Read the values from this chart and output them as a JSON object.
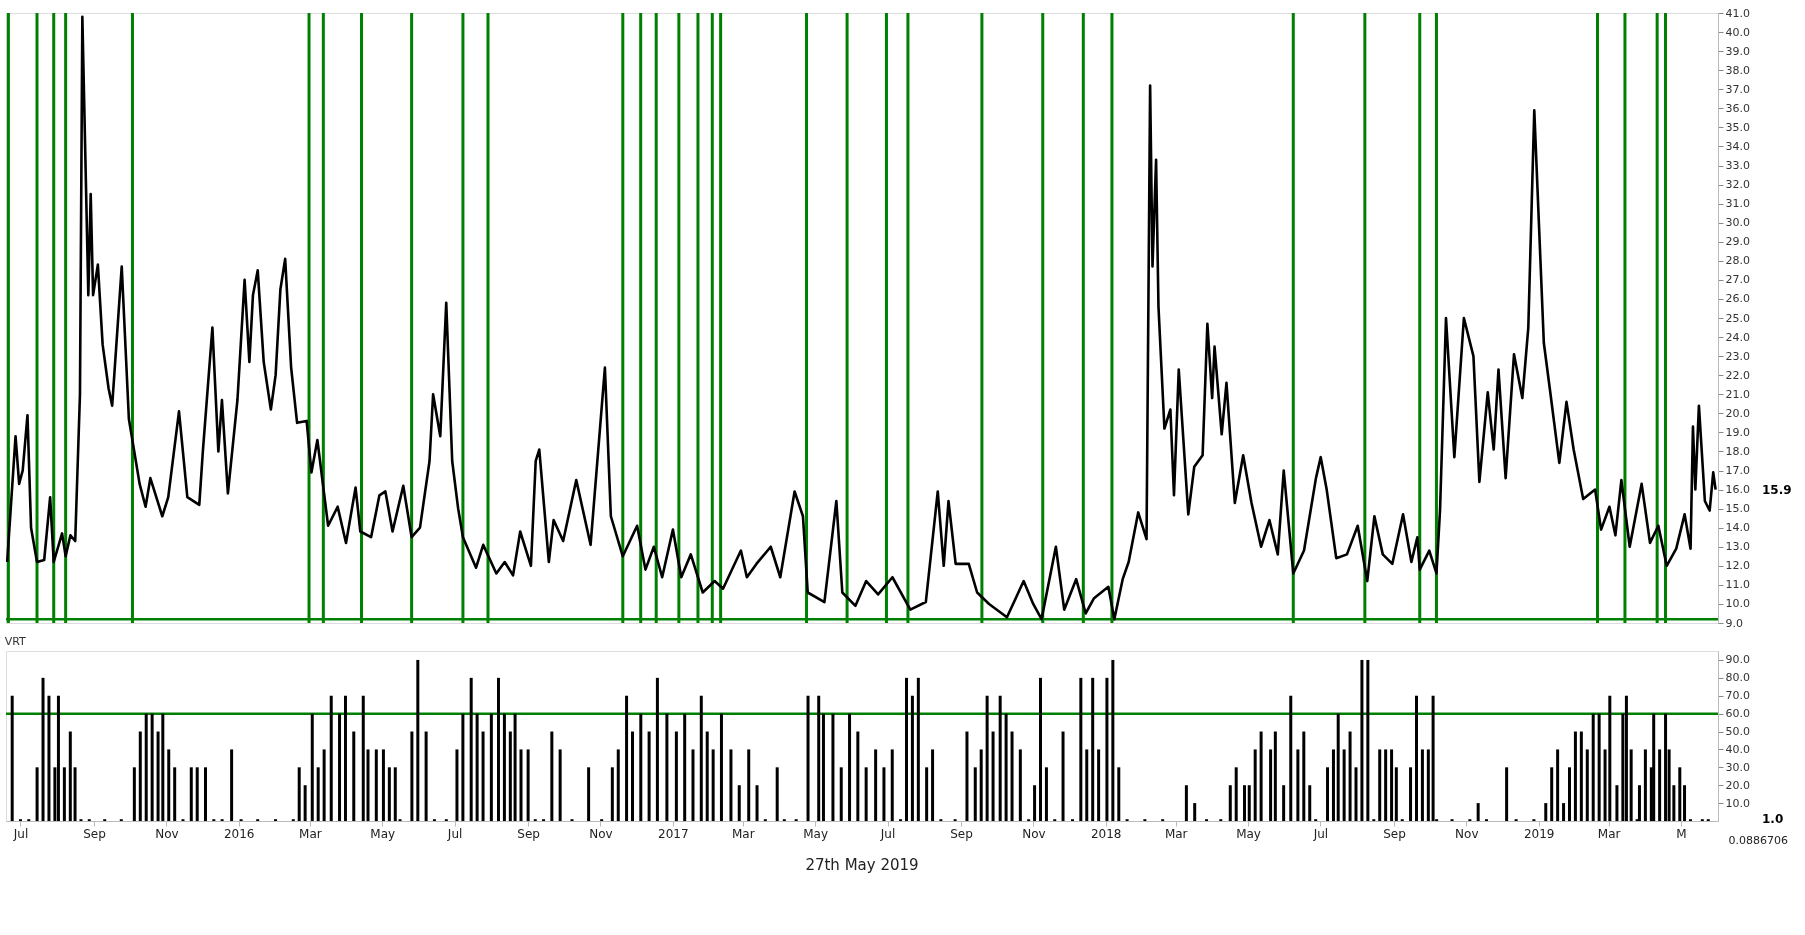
{
  "chart_data": [
    {
      "type": "line",
      "xlim": [
        "2015-06-23",
        "2019-05-28"
      ],
      "ylim": [
        9,
        41
      ],
      "tick_labels": "y",
      "grid": false,
      "line_style": "solid",
      "yticks": [
        {
          "value": 9,
          "label": "9.0"
        },
        {
          "value": 10,
          "label": "10.0"
        },
        {
          "value": 11,
          "label": "11.0"
        },
        {
          "value": 12,
          "label": "12.0"
        },
        {
          "value": 13,
          "label": "13.0"
        },
        {
          "value": 14,
          "label": "14.0"
        },
        {
          "value": 15,
          "label": "15.0"
        },
        {
          "value": 16,
          "label": "16.0"
        },
        {
          "value": 17,
          "label": "17.0"
        },
        {
          "value": 18,
          "label": "18.0"
        },
        {
          "value": 19,
          "label": "19.0"
        },
        {
          "value": 20,
          "label": "20.0"
        },
        {
          "value": 21,
          "label": "21.0"
        },
        {
          "value": 22,
          "label": "22.0"
        },
        {
          "value": 23,
          "label": "23.0"
        },
        {
          "value": 24,
          "label": "24.0"
        },
        {
          "value": 25,
          "label": "25.0"
        },
        {
          "value": 26,
          "label": "26.0"
        },
        {
          "value": 27,
          "label": "27.0"
        },
        {
          "value": 28,
          "label": "28.0"
        },
        {
          "value": 29,
          "label": "29.0"
        },
        {
          "value": 30,
          "label": "30.0"
        },
        {
          "value": 31,
          "label": "31.0"
        },
        {
          "value": 32,
          "label": "32.0"
        },
        {
          "value": 33,
          "label": "33.0"
        },
        {
          "value": 34,
          "label": "34.0"
        },
        {
          "value": 35,
          "label": "35.0"
        },
        {
          "value": 36,
          "label": "36.0"
        },
        {
          "value": 37,
          "label": "37.0"
        },
        {
          "value": 38,
          "label": "38.0"
        },
        {
          "value": 39,
          "label": "39.0"
        },
        {
          "value": 40,
          "label": "40.0"
        },
        {
          "value": 41,
          "label": "41.0"
        }
      ],
      "series": [
        {
          "color": "#000000",
          "x": [
            "2015-06-24",
            "2015-07-01",
            "2015-07-04",
            "2015-07-07",
            "2015-07-11",
            "2015-07-14",
            "2015-07-19",
            "2015-07-25",
            "2015-07-30",
            "2015-08-02",
            "2015-08-09",
            "2015-08-12",
            "2015-08-16",
            "2015-08-20",
            "2015-08-24",
            "2015-08-26",
            "2015-08-31",
            "2015-09-02",
            "2015-09-04",
            "2015-09-08",
            "2015-09-12",
            "2015-09-17",
            "2015-09-20",
            "2015-09-28",
            "2015-10-04",
            "2015-10-13",
            "2015-10-18",
            "2015-10-22",
            "2015-11-01",
            "2015-11-06",
            "2015-11-15",
            "2015-11-22",
            "2015-12-02",
            "2015-12-05",
            "2015-12-13",
            "2015-12-18",
            "2015-12-21",
            "2015-12-26",
            "2016-01-03",
            "2016-01-09",
            "2016-01-13",
            "2016-01-16",
            "2016-01-20",
            "2016-01-25",
            "2016-01-31",
            "2016-02-04",
            "2016-02-08",
            "2016-02-12",
            "2016-02-17",
            "2016-02-22",
            "2016-03-01",
            "2016-03-05",
            "2016-03-10",
            "2016-03-19",
            "2016-03-27",
            "2016-04-03",
            "2016-04-11",
            "2016-04-15",
            "2016-04-24",
            "2016-05-01",
            "2016-05-06",
            "2016-05-12",
            "2016-05-21",
            "2016-05-28",
            "2016-06-04",
            "2016-06-12",
            "2016-06-15",
            "2016-06-21",
            "2016-06-26",
            "2016-07-01",
            "2016-07-06",
            "2016-07-10",
            "2016-07-21",
            "2016-07-27",
            "2016-08-07",
            "2016-08-14",
            "2016-08-21",
            "2016-08-27",
            "2016-09-05",
            "2016-09-09",
            "2016-09-12",
            "2016-09-20",
            "2016-09-24",
            "2016-10-02",
            "2016-10-13",
            "2016-10-25",
            "2016-11-06",
            "2016-11-11",
            "2016-11-21",
            "2016-12-03",
            "2016-12-10",
            "2016-12-17",
            "2016-12-24",
            "2017-01-02",
            "2017-01-09",
            "2017-01-17",
            "2017-01-27",
            "2017-02-06",
            "2017-02-13",
            "2017-02-28",
            "2017-03-05",
            "2017-03-13",
            "2017-03-25",
            "2017-04-02",
            "2017-04-14",
            "2017-04-21",
            "2017-04-25",
            "2017-05-09",
            "2017-05-19",
            "2017-05-24",
            "2017-06-04",
            "2017-06-13",
            "2017-06-23",
            "2017-07-05",
            "2017-07-20",
            "2017-08-02",
            "2017-08-12",
            "2017-08-17",
            "2017-08-21",
            "2017-08-27",
            "2017-09-07",
            "2017-09-14",
            "2017-09-24",
            "2017-10-09",
            "2017-10-23",
            "2017-10-31",
            "2017-11-07",
            "2017-11-19",
            "2017-11-26",
            "2017-12-06",
            "2017-12-14",
            "2017-12-21",
            "2018-01-02",
            "2018-01-07",
            "2018-01-14",
            "2018-01-19",
            "2018-01-27",
            "2018-02-03",
            "2018-02-06",
            "2018-02-08",
            "2018-02-11",
            "2018-02-13",
            "2018-02-18",
            "2018-02-23",
            "2018-02-26",
            "2018-03-02",
            "2018-03-10",
            "2018-03-15",
            "2018-03-22",
            "2018-03-26",
            "2018-03-30",
            "2018-04-01",
            "2018-04-07",
            "2018-04-11",
            "2018-04-18",
            "2018-04-25",
            "2018-05-02",
            "2018-05-10",
            "2018-05-17",
            "2018-05-24",
            "2018-05-29",
            "2018-06-06",
            "2018-06-15",
            "2018-06-25",
            "2018-06-29",
            "2018-07-04",
            "2018-07-12",
            "2018-07-21",
            "2018-07-30",
            "2018-08-07",
            "2018-08-13",
            "2018-08-20",
            "2018-08-28",
            "2018-09-06",
            "2018-09-13",
            "2018-09-18",
            "2018-09-20",
            "2018-09-28",
            "2018-10-04",
            "2018-10-07",
            "2018-10-12",
            "2018-10-19",
            "2018-10-27",
            "2018-11-04",
            "2018-11-09",
            "2018-11-16",
            "2018-11-21",
            "2018-11-25",
            "2018-12-01",
            "2018-12-08",
            "2018-12-15",
            "2018-12-20",
            "2018-12-25",
            "2019-01-02",
            "2019-01-07",
            "2019-01-15",
            "2019-01-21",
            "2019-01-27",
            "2019-02-04",
            "2019-02-14",
            "2019-02-19",
            "2019-02-26",
            "2019-03-03",
            "2019-03-08",
            "2019-03-15",
            "2019-03-25",
            "2019-04-01",
            "2019-04-08",
            "2019-04-15",
            "2019-04-23",
            "2019-04-30",
            "2019-05-05",
            "2019-05-07",
            "2019-05-09",
            "2019-05-12",
            "2019-05-17",
            "2019-05-21",
            "2019-05-24",
            "2019-05-26"
          ],
          "values": [
            12.2,
            18.8,
            16.3,
            17.0,
            19.9,
            14.0,
            12.2,
            12.3,
            15.6,
            12.2,
            13.7,
            12.5,
            13.6,
            13.3,
            21.0,
            40.8,
            26.2,
            31.5,
            26.2,
            27.8,
            23.6,
            21.3,
            20.4,
            27.7,
            19.7,
            16.3,
            15.1,
            16.6,
            14.6,
            15.6,
            20.1,
            15.6,
            15.2,
            18.0,
            24.5,
            18.0,
            20.7,
            15.8,
            20.7,
            27.0,
            22.7,
            26.2,
            27.5,
            22.7,
            20.2,
            22.0,
            26.5,
            28.1,
            22.4,
            19.5,
            19.6,
            16.9,
            18.6,
            14.1,
            15.1,
            13.2,
            16.1,
            13.8,
            13.5,
            15.7,
            15.9,
            13.8,
            16.2,
            13.5,
            14.0,
            17.5,
            21.0,
            18.8,
            25.8,
            17.5,
            15.0,
            13.5,
            11.9,
            13.1,
            11.6,
            12.2,
            11.5,
            13.8,
            12.0,
            17.5,
            18.1,
            12.2,
            14.4,
            13.3,
            16.5,
            13.1,
            22.4,
            14.6,
            12.5,
            14.1,
            11.8,
            13.0,
            11.4,
            13.9,
            11.4,
            12.6,
            10.6,
            11.2,
            10.8,
            12.8,
            11.4,
            12.1,
            13.0,
            11.4,
            15.9,
            14.6,
            10.6,
            10.1,
            15.4,
            10.6,
            9.9,
            11.2,
            10.5,
            11.4,
            9.7,
            10.1,
            15.9,
            12.0,
            15.4,
            12.1,
            12.1,
            10.6,
            10.0,
            9.3,
            11.2,
            10.0,
            9.2,
            13.0,
            9.7,
            11.3,
            9.5,
            10.3,
            10.9,
            9.2,
            11.3,
            12.2,
            14.8,
            13.4,
            37.2,
            27.7,
            33.3,
            25.6,
            19.2,
            20.2,
            15.7,
            22.3,
            14.7,
            17.2,
            17.8,
            24.7,
            20.8,
            23.5,
            18.9,
            21.6,
            15.3,
            17.8,
            15.3,
            13.0,
            14.4,
            12.6,
            17.0,
            11.6,
            12.8,
            16.6,
            17.7,
            16.0,
            12.4,
            12.6,
            14.1,
            11.2,
            14.6,
            12.6,
            12.1,
            14.7,
            12.2,
            13.5,
            11.8,
            12.8,
            11.6,
            14.9,
            25.0,
            17.7,
            25.0,
            23.0,
            16.4,
            21.1,
            18.1,
            22.3,
            16.6,
            23.1,
            20.8,
            24.5,
            35.9,
            23.7,
            21.3,
            17.4,
            20.6,
            18.1,
            15.5,
            16.0,
            13.9,
            15.1,
            13.6,
            16.5,
            13.0,
            16.3,
            13.2,
            14.1,
            12.0,
            12.9,
            14.7,
            12.9,
            19.3,
            16.0,
            20.4,
            15.4,
            14.9,
            16.9,
            16.0
          ]
        }
      ],
      "ref_lines": [
        {
          "axis": "x",
          "value": "2015-06-25",
          "color": "#008000"
        },
        {
          "axis": "x",
          "value": "2015-07-19",
          "color": "#008000"
        },
        {
          "axis": "x",
          "value": "2015-08-02",
          "color": "#008000"
        },
        {
          "axis": "x",
          "value": "2015-08-12",
          "color": "#008000"
        },
        {
          "axis": "x",
          "value": "2015-10-07",
          "color": "#008000"
        },
        {
          "axis": "x",
          "value": "2016-03-03",
          "color": "#008000"
        },
        {
          "axis": "x",
          "value": "2016-03-15",
          "color": "#008000"
        },
        {
          "axis": "x",
          "value": "2016-04-16",
          "color": "#008000"
        },
        {
          "axis": "x",
          "value": "2016-05-28",
          "color": "#008000"
        },
        {
          "axis": "x",
          "value": "2016-07-10",
          "color": "#008000"
        },
        {
          "axis": "x",
          "value": "2016-07-31",
          "color": "#008000"
        },
        {
          "axis": "x",
          "value": "2016-11-21",
          "color": "#008000"
        },
        {
          "axis": "x",
          "value": "2016-12-06",
          "color": "#008000"
        },
        {
          "axis": "x",
          "value": "2016-12-19",
          "color": "#008000"
        },
        {
          "axis": "x",
          "value": "2017-01-07",
          "color": "#008000"
        },
        {
          "axis": "x",
          "value": "2017-01-23",
          "color": "#008000"
        },
        {
          "axis": "x",
          "value": "2017-02-04",
          "color": "#008000"
        },
        {
          "axis": "x",
          "value": "2017-02-11",
          "color": "#008000"
        },
        {
          "axis": "x",
          "value": "2017-04-24",
          "color": "#008000"
        },
        {
          "axis": "x",
          "value": "2017-05-28",
          "color": "#008000"
        },
        {
          "axis": "x",
          "value": "2017-06-30",
          "color": "#008000"
        },
        {
          "axis": "x",
          "value": "2017-07-18",
          "color": "#008000"
        },
        {
          "axis": "x",
          "value": "2017-09-18",
          "color": "#008000"
        },
        {
          "axis": "x",
          "value": "2017-11-08",
          "color": "#008000"
        },
        {
          "axis": "x",
          "value": "2017-12-12",
          "color": "#008000"
        },
        {
          "axis": "x",
          "value": "2018-01-05",
          "color": "#008000"
        },
        {
          "axis": "x",
          "value": "2018-06-06",
          "color": "#008000"
        },
        {
          "axis": "x",
          "value": "2018-08-05",
          "color": "#008000"
        },
        {
          "axis": "x",
          "value": "2018-09-20",
          "color": "#008000"
        },
        {
          "axis": "x",
          "value": "2018-10-04",
          "color": "#008000"
        },
        {
          "axis": "x",
          "value": "2019-02-16",
          "color": "#008000"
        },
        {
          "axis": "x",
          "value": "2019-03-11",
          "color": "#008000"
        },
        {
          "axis": "x",
          "value": "2019-04-07",
          "color": "#008000"
        },
        {
          "axis": "x",
          "value": "2019-04-14",
          "color": "#008000"
        },
        {
          "axis": "y",
          "value": 9.2,
          "color": "#008000"
        }
      ],
      "annotations": [
        "15.9"
      ]
    },
    {
      "type": "bar",
      "title": "VRT",
      "color": "#000000",
      "xlim": [
        "2015-06-23",
        "2019-05-28"
      ],
      "ylim": [
        0,
        95
      ],
      "grid": false,
      "yticks": [
        {
          "value": 10,
          "label": "10.0"
        },
        {
          "value": 20,
          "label": "20.0"
        },
        {
          "value": 30,
          "label": "30.0"
        },
        {
          "value": 40,
          "label": "40.0"
        },
        {
          "value": 50,
          "label": "50.0"
        },
        {
          "value": 60,
          "label": "60.0"
        },
        {
          "value": 70,
          "label": "70.0"
        },
        {
          "value": 80,
          "label": "80.0"
        },
        {
          "value": 90,
          "label": "90.0"
        }
      ],
      "xticks": [
        {
          "value": "2015-07-01",
          "label": "Jul"
        },
        {
          "value": "2015-09-01",
          "label": "Sep"
        },
        {
          "value": "2015-11-01",
          "label": "Nov"
        },
        {
          "value": "2016-01-01",
          "label": "2016"
        },
        {
          "value": "2016-03-01",
          "label": "Mar"
        },
        {
          "value": "2016-05-01",
          "label": "May"
        },
        {
          "value": "2016-07-01",
          "label": "Jul"
        },
        {
          "value": "2016-09-01",
          "label": "Sep"
        },
        {
          "value": "2016-11-01",
          "label": "Nov"
        },
        {
          "value": "2017-01-01",
          "label": "2017"
        },
        {
          "value": "2017-03-01",
          "label": "Mar"
        },
        {
          "value": "2017-05-01",
          "label": "May"
        },
        {
          "value": "2017-07-01",
          "label": "Jul"
        },
        {
          "value": "2017-09-01",
          "label": "Sep"
        },
        {
          "value": "2017-11-01",
          "label": "Nov"
        },
        {
          "value": "2018-01-01",
          "label": "2018"
        },
        {
          "value": "2018-03-01",
          "label": "Mar"
        },
        {
          "value": "2018-05-01",
          "label": "May"
        },
        {
          "value": "2018-07-01",
          "label": "Jul"
        },
        {
          "value": "2018-09-01",
          "label": "Sep"
        },
        {
          "value": "2018-11-01",
          "label": "Nov"
        },
        {
          "value": "2019-01-01",
          "label": "2019"
        },
        {
          "value": "2019-03-01",
          "label": "Mar"
        },
        {
          "value": "2019-05-01",
          "label": "M"
        }
      ],
      "x": [
        "2015-06-24",
        "2015-07-01",
        "2015-07-08",
        "2015-07-15",
        "2015-07-20",
        "2015-07-25",
        "2015-07-30",
        "2015-08-02",
        "2015-08-07",
        "2015-08-12",
        "2015-08-16",
        "2015-08-21",
        "2015-08-28",
        "2015-09-10",
        "2015-09-24",
        "2015-10-05",
        "2015-10-10",
        "2015-10-15",
        "2015-10-20",
        "2015-10-25",
        "2015-10-29",
        "2015-11-03",
        "2015-11-08",
        "2015-11-15",
        "2015-11-22",
        "2015-11-27",
        "2015-12-04",
        "2015-12-11",
        "2015-12-18",
        "2015-12-26",
        "2016-01-03",
        "2016-01-17",
        "2016-02-01",
        "2016-02-16",
        "2016-02-21",
        "2016-02-26",
        "2016-03-03",
        "2016-03-08",
        "2016-03-13",
        "2016-03-19",
        "2016-03-26",
        "2016-03-31",
        "2016-04-07",
        "2016-04-15",
        "2016-04-19",
        "2016-04-26",
        "2016-05-02",
        "2016-05-07",
        "2016-05-12",
        "2016-05-16",
        "2016-05-26",
        "2016-05-31",
        "2016-06-07",
        "2016-06-14",
        "2016-06-24",
        "2016-07-03",
        "2016-07-08",
        "2016-07-15",
        "2016-07-20",
        "2016-07-25",
        "2016-08-01",
        "2016-08-07",
        "2016-08-12",
        "2016-08-17",
        "2016-08-21",
        "2016-08-26",
        "2016-09-01",
        "2016-09-07",
        "2016-09-14",
        "2016-09-21",
        "2016-09-28",
        "2016-10-08",
        "2016-10-22",
        "2016-11-02",
        "2016-11-11",
        "2016-11-16",
        "2016-11-23",
        "2016-11-28",
        "2016-12-05",
        "2016-12-12",
        "2016-12-19",
        "2016-12-27",
        "2017-01-04",
        "2017-01-11",
        "2017-01-18",
        "2017-01-25",
        "2017-01-30",
        "2017-02-04",
        "2017-02-11",
        "2017-02-19",
        "2017-02-26",
        "2017-03-06",
        "2017-03-13",
        "2017-03-20",
        "2017-03-30",
        "2017-04-05",
        "2017-04-15",
        "2017-04-25",
        "2017-05-04",
        "2017-05-08",
        "2017-05-16",
        "2017-05-23",
        "2017-05-30",
        "2017-06-06",
        "2017-06-13",
        "2017-06-21",
        "2017-06-28",
        "2017-07-05",
        "2017-07-12",
        "2017-07-17",
        "2017-07-22",
        "2017-07-27",
        "2017-08-03",
        "2017-08-08",
        "2017-08-15",
        "2017-08-27",
        "2017-09-06",
        "2017-09-13",
        "2017-09-18",
        "2017-09-23",
        "2017-09-28",
        "2017-10-04",
        "2017-10-09",
        "2017-10-14",
        "2017-10-21",
        "2017-10-28",
        "2017-11-02",
        "2017-11-07",
        "2017-11-12",
        "2017-11-19",
        "2017-11-26",
        "2017-12-04",
        "2017-12-11",
        "2017-12-16",
        "2017-12-21",
        "2017-12-26",
        "2018-01-02",
        "2018-01-07",
        "2018-01-12",
        "2018-01-19",
        "2018-02-03",
        "2018-02-18",
        "2018-03-10",
        "2018-03-17",
        "2018-03-27",
        "2018-04-08",
        "2018-04-16",
        "2018-04-21",
        "2018-04-28",
        "2018-05-02",
        "2018-05-07",
        "2018-05-12",
        "2018-05-20",
        "2018-05-24",
        "2018-05-31",
        "2018-06-06",
        "2018-06-12",
        "2018-06-17",
        "2018-06-22",
        "2018-06-27",
        "2018-07-07",
        "2018-07-12",
        "2018-07-16",
        "2018-07-21",
        "2018-07-26",
        "2018-07-31",
        "2018-08-05",
        "2018-08-10",
        "2018-08-15",
        "2018-08-20",
        "2018-08-25",
        "2018-08-30",
        "2018-09-03",
        "2018-09-08",
        "2018-09-15",
        "2018-09-20",
        "2018-09-25",
        "2018-09-30",
        "2018-10-04",
        "2018-10-07",
        "2018-10-20",
        "2018-11-04",
        "2018-11-11",
        "2018-11-18",
        "2018-12-05",
        "2018-12-13",
        "2018-12-28",
        "2019-01-07",
        "2019-01-12",
        "2019-01-17",
        "2019-01-22",
        "2019-01-27",
        "2019-02-01",
        "2019-02-06",
        "2019-02-11",
        "2019-02-16",
        "2019-02-21",
        "2019-02-26",
        "2019-03-02",
        "2019-03-08",
        "2019-03-13",
        "2019-03-16",
        "2019-03-20",
        "2019-03-25",
        "2019-03-27",
        "2019-04-01",
        "2019-04-06",
        "2019-04-08",
        "2019-04-13",
        "2019-04-18",
        "2019-04-21",
        "2019-04-25",
        "2019-04-30",
        "2019-05-04",
        "2019-05-09",
        "2019-05-19",
        "2019-05-24"
      ],
      "values": [
        70,
        1,
        1,
        30,
        80,
        70,
        30,
        70,
        30,
        50,
        30,
        1,
        1,
        1,
        1,
        30,
        50,
        60,
        60,
        50,
        60,
        40,
        30,
        1,
        30,
        30,
        30,
        1,
        1,
        40,
        1,
        1,
        1,
        1,
        30,
        20,
        60,
        30,
        40,
        70,
        60,
        70,
        50,
        70,
        40,
        40,
        40,
        30,
        30,
        1,
        50,
        90,
        50,
        1,
        1,
        40,
        60,
        80,
        60,
        50,
        60,
        80,
        60,
        50,
        60,
        40,
        40,
        1,
        1,
        50,
        40,
        1,
        30,
        1,
        30,
        40,
        70,
        50,
        60,
        50,
        80,
        60,
        50,
        60,
        40,
        70,
        50,
        40,
        60,
        40,
        20,
        40,
        20,
        1,
        30,
        1,
        1,
        70,
        70,
        60,
        60,
        30,
        60,
        50,
        30,
        40,
        30,
        40,
        1,
        80,
        70,
        80,
        30,
        40,
        1,
        1,
        50,
        30,
        40,
        70,
        50,
        70,
        60,
        50,
        40,
        1,
        20,
        80,
        30,
        1,
        50,
        1,
        80,
        40,
        80,
        40,
        80,
        90,
        30,
        1,
        1,
        1,
        20,
        10,
        1,
        1,
        20,
        30,
        20,
        20,
        40,
        50,
        40,
        50,
        20,
        70,
        40,
        50,
        20,
        1,
        30,
        40,
        60,
        40,
        50,
        30,
        90,
        90,
        1,
        40,
        40,
        40,
        30,
        1,
        30,
        70,
        40,
        40,
        70,
        1,
        1,
        1,
        10,
        1,
        30,
        1,
        1,
        10,
        30,
        40,
        10,
        30,
        50,
        50,
        40,
        60,
        60,
        40,
        70,
        20,
        60,
        70,
        40,
        1,
        20,
        40,
        30,
        60,
        40,
        60,
        40,
        20,
        30,
        20,
        1,
        1,
        1
      ],
      "ref_lines": [
        {
          "axis": "y",
          "value": 60,
          "color": "#008000"
        }
      ],
      "annotations": [
        "27th May 2019",
        "1.0",
        "0.0886706"
      ]
    }
  ]
}
